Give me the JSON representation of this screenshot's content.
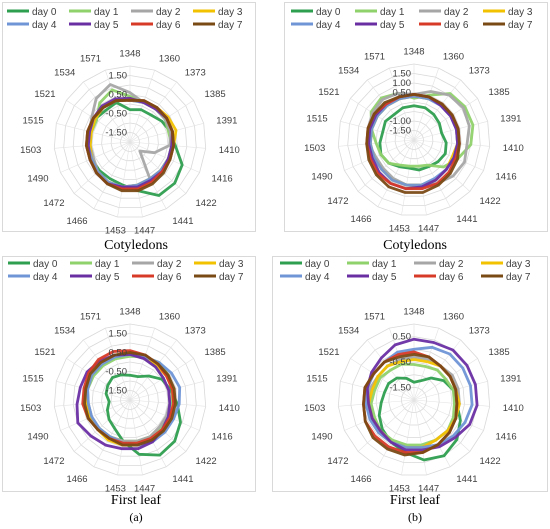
{
  "captions": {
    "top_left": "Cotyledons",
    "top_right": "Cotyledons",
    "bottom_left": "First leaf",
    "bottom_right": "First leaf",
    "sub_left": "(a)",
    "sub_right": "(b)"
  },
  "colors": {
    "day 0": "#2e9e4f",
    "day 1": "#8fd16b",
    "day 2": "#a6a6a6",
    "day 3": "#f2c200",
    "day 4": "#6f95d6",
    "day 5": "#6a2ea3",
    "day 6": "#d73a27",
    "day 7": "#7a4a14"
  },
  "chart_data": [
    {
      "type": "radar",
      "panel": "a-cotyledons",
      "categories": [
        "1348",
        "1360",
        "1373",
        "1385",
        "1391",
        "1410",
        "1416",
        "1422",
        "1441",
        "1447",
        "1453",
        "1466",
        "1472",
        "1490",
        "1503",
        "1515",
        "1521",
        "1534",
        "1571"
      ],
      "rings": [
        "1.50",
        "0.50",
        "-0.50",
        "-1.50"
      ],
      "rlim": [
        -2.0,
        2.0
      ],
      "series": [
        {
          "name": "day 0",
          "values": [
            -0.3,
            -0.2,
            -0.2,
            0,
            0.2,
            0.4,
            1.0,
            1.2,
            1.2,
            0.6,
            0.3,
            0.2,
            0.2,
            0.2,
            0.2,
            0.2,
            0.2,
            0.1,
            0.2
          ]
        },
        {
          "name": "day 1",
          "values": [
            0.4,
            0.2,
            0.2,
            0.2,
            0.1,
            0.2,
            0.2,
            0.2,
            0.3,
            0.4,
            0.5,
            0.5,
            0.4,
            0.2,
            0.1,
            0.1,
            0.1,
            0.6,
            0.9
          ]
        },
        {
          "name": "day 2",
          "values": [
            0.6,
            0.2,
            0.2,
            0.2,
            0.2,
            0.1,
            -0.6,
            -1.3,
            0.2,
            0.3,
            0.4,
            0.4,
            0.3,
            0.1,
            0.1,
            0.2,
            0.4,
            0.9,
            1.2
          ]
        },
        {
          "name": "day 3",
          "values": [
            0.2,
            0.2,
            0.3,
            0.4,
            0.5,
            0.3,
            0.2,
            0.2,
            0.2,
            0.3,
            0.4,
            0.4,
            0.3,
            0.2,
            0.1,
            0.1,
            0.2,
            0.3,
            0.3
          ]
        },
        {
          "name": "day 4",
          "values": [
            0.2,
            0.2,
            0.3,
            0.3,
            0.3,
            0.3,
            0.2,
            0.2,
            0.2,
            0.3,
            0.4,
            0.4,
            0.3,
            0.2,
            0.2,
            0.2,
            0.3,
            0.3,
            0.3
          ]
        },
        {
          "name": "day 5",
          "values": [
            0.3,
            0.2,
            0.2,
            0.3,
            0.3,
            0.2,
            0.2,
            0.3,
            0.3,
            0.4,
            0.4,
            0.5,
            0.4,
            0.3,
            0.2,
            0.2,
            0.3,
            0.4,
            0.4
          ]
        },
        {
          "name": "day 6",
          "values": [
            0.2,
            0.3,
            0.3,
            0.3,
            0.3,
            0.3,
            0.3,
            0.3,
            0.4,
            0.5,
            0.5,
            0.5,
            0.4,
            0.3,
            0.3,
            0.3,
            0.3,
            0.3,
            0.3
          ]
        },
        {
          "name": "day 7",
          "values": [
            0.2,
            0.3,
            0.3,
            0.3,
            0.3,
            0.3,
            0.3,
            0.4,
            0.5,
            0.6,
            0.6,
            0.5,
            0.4,
            0.3,
            0.3,
            0.3,
            0.3,
            0.3,
            0.3
          ]
        }
      ]
    },
    {
      "type": "radar",
      "panel": "b-cotyledons",
      "categories": [
        "1348",
        "1360",
        "1373",
        "1385",
        "1391",
        "1410",
        "1416",
        "1422",
        "1441",
        "1447",
        "1453",
        "1466",
        "1472",
        "1490",
        "1503",
        "1515",
        "1521",
        "1534",
        "1571"
      ],
      "rings": [
        "1.50",
        "1.00",
        "0.50",
        "-1.00",
        "-1.50"
      ],
      "rlim": [
        -2.0,
        2.0
      ],
      "series": [
        {
          "name": "day 0",
          "values": [
            -0.2,
            -0.2,
            -0.3,
            -0.4,
            -0.5,
            -0.3,
            -0.2,
            -0.3,
            -0.4,
            -0.4,
            -0.5,
            -0.4,
            -0.2,
            -0.1,
            -0.2,
            -0.3,
            -0.2,
            -0.3,
            -0.2
          ]
        },
        {
          "name": "day 1",
          "values": [
            0.2,
            0.5,
            1.1,
            1.2,
            1.2,
            1.0,
            0.5,
            0.1,
            -0.5,
            -0.6,
            -0.6,
            -0.5,
            -0.2,
            -0.1,
            0.0,
            0.3,
            0.7,
            0.8,
            0.6
          ]
        },
        {
          "name": "day 2",
          "values": [
            0.4,
            0.7,
            1.0,
            1.1,
            1.0,
            0.8,
            0.9,
            0.8,
            0.6,
            0.5,
            0.4,
            0.3,
            0.2,
            0.2,
            0.4,
            0.5,
            0.6,
            0.7,
            0.6
          ]
        },
        {
          "name": "day 3",
          "values": [
            0.3,
            0.3,
            0.4,
            0.4,
            0.3,
            0.3,
            0.2,
            0.3,
            0.4,
            0.4,
            0.4,
            0.4,
            0.3,
            0.3,
            0.3,
            0.3,
            0.3,
            0.3,
            0.3
          ]
        },
        {
          "name": "day 4",
          "values": [
            0.3,
            0.3,
            0.3,
            0.3,
            0.3,
            0.3,
            0.3,
            0.3,
            0.3,
            0.4,
            0.4,
            0.4,
            0.3,
            0.3,
            0.3,
            0.3,
            0.3,
            0.3,
            0.3
          ]
        },
        {
          "name": "day 5",
          "values": [
            0.4,
            0.4,
            0.3,
            0.3,
            0.3,
            0.3,
            0.3,
            0.3,
            0.4,
            0.5,
            0.6,
            0.6,
            0.5,
            0.4,
            0.4,
            0.4,
            0.4,
            0.4,
            0.4
          ]
        },
        {
          "name": "day 6",
          "values": [
            0.4,
            0.4,
            0.4,
            0.4,
            0.4,
            0.4,
            0.4,
            0.5,
            0.6,
            0.6,
            0.6,
            0.6,
            0.6,
            0.5,
            0.5,
            0.5,
            0.5,
            0.4,
            0.4
          ]
        },
        {
          "name": "day 7",
          "values": [
            0.4,
            0.4,
            0.4,
            0.4,
            0.4,
            0.4,
            0.5,
            0.6,
            0.7,
            0.8,
            0.8,
            0.8,
            0.7,
            0.6,
            0.5,
            0.5,
            0.5,
            0.5,
            0.4
          ]
        }
      ]
    },
    {
      "type": "radar",
      "panel": "a-first-leaf",
      "categories": [
        "1348",
        "1360",
        "1373",
        "1385",
        "1391",
        "1410",
        "1416",
        "1422",
        "1441",
        "1447",
        "1453",
        "1466",
        "1472",
        "1490",
        "1503",
        "1515",
        "1521",
        "1534",
        "1571"
      ],
      "rings": [
        "1.50",
        "0.50",
        "-0.50",
        "-1.50"
      ],
      "rlim": [
        -2.0,
        2.0
      ],
      "series": [
        {
          "name": "day 0",
          "values": [
            -0.7,
            -0.7,
            -0.4,
            0.0,
            0.2,
            0.5,
            0.9,
            1.2,
            1.3,
            0.9,
            0.2,
            -0.3,
            -0.5,
            -0.7,
            -0.9,
            -0.7,
            -0.6,
            -0.5,
            -0.6
          ]
        },
        {
          "name": "day 1",
          "values": [
            0.3,
            0.4,
            0.5,
            0.4,
            0.3,
            0.2,
            0.2,
            0.2,
            0.2,
            0.2,
            0.2,
            0.2,
            0.2,
            0.3,
            0.3,
            0.3,
            0.3,
            0.3,
            0.3
          ]
        },
        {
          "name": "day 2",
          "values": [
            0.4,
            0.3,
            0.2,
            0.1,
            0.1,
            0.1,
            0.1,
            0.1,
            0.2,
            0.2,
            0.2,
            0.2,
            0.2,
            0.2,
            0.2,
            0.3,
            0.4,
            0.5,
            0.5
          ]
        },
        {
          "name": "day 3",
          "values": [
            0.5,
            0.4,
            0.3,
            0.3,
            0.3,
            0.3,
            0.3,
            0.4,
            0.4,
            0.4,
            0.4,
            0.4,
            0.3,
            0.3,
            0.3,
            0.4,
            0.4,
            0.5,
            0.5
          ]
        },
        {
          "name": "day 4",
          "values": [
            0.4,
            0.4,
            0.5,
            0.6,
            0.7,
            0.6,
            0.5,
            0.5,
            0.5,
            0.4,
            0.3,
            0.2,
            0.2,
            0.2,
            0.2,
            0.3,
            0.4,
            0.4,
            0.4
          ]
        },
        {
          "name": "day 5",
          "values": [
            0.4,
            0.3,
            0.2,
            0.1,
            0.1,
            0.1,
            0.2,
            0.3,
            0.5,
            0.6,
            0.6,
            0.7,
            0.8,
            1.0,
            0.8,
            0.7,
            0.7,
            0.6,
            0.5
          ]
        },
        {
          "name": "day 6",
          "values": [
            0.6,
            0.5,
            0.4,
            0.3,
            0.3,
            0.3,
            0.3,
            0.3,
            0.3,
            0.3,
            0.3,
            0.3,
            0.3,
            0.4,
            0.5,
            0.5,
            0.6,
            0.7,
            0.7
          ]
        },
        {
          "name": "day 7",
          "values": [
            0.5,
            0.5,
            0.4,
            0.4,
            0.4,
            0.4,
            0.4,
            0.4,
            0.4,
            0.4,
            0.4,
            0.3,
            0.3,
            0.4,
            0.4,
            0.4,
            0.5,
            0.5,
            0.5
          ]
        }
      ]
    },
    {
      "type": "radar",
      "panel": "b-first-leaf",
      "categories": [
        "1348",
        "1360",
        "1373",
        "1385",
        "1391",
        "1410",
        "1416",
        "1422",
        "1441",
        "1447",
        "1453",
        "1466",
        "1472",
        "1490",
        "1503",
        "1515",
        "1521",
        "1534",
        "1571"
      ],
      "rings": [
        "0.50",
        "-0.50",
        "-1.50"
      ],
      "rlim": [
        -2.0,
        1.0
      ],
      "series": [
        {
          "name": "day 0",
          "values": [
            -1.3,
            -1.2,
            -0.9,
            -0.6,
            -0.4,
            -0.3,
            0.0,
            0.3,
            0.5,
            0.4,
            0.1,
            -0.1,
            -0.3,
            -0.5,
            -0.7,
            -0.8,
            -0.8,
            -0.9,
            -1.1
          ]
        },
        {
          "name": "day 1",
          "values": [
            -0.6,
            -0.6,
            -0.5,
            -0.5,
            -0.4,
            -0.4,
            -0.3,
            -0.2,
            -0.2,
            -0.2,
            -0.2,
            -0.2,
            -0.2,
            -0.3,
            -0.3,
            -0.4,
            -0.4,
            -0.5,
            -0.5
          ]
        },
        {
          "name": "day 2",
          "values": [
            -0.3,
            -0.3,
            -0.3,
            -0.2,
            -0.2,
            -0.2,
            -0.2,
            -0.2,
            -0.2,
            -0.1,
            -0.1,
            -0.1,
            -0.1,
            -0.2,
            -0.2,
            -0.2,
            -0.3,
            -0.3,
            -0.3
          ]
        },
        {
          "name": "day 3",
          "values": [
            -0.4,
            -0.4,
            -0.3,
            -0.3,
            -0.3,
            -0.2,
            -0.2,
            -0.2,
            -0.2,
            -0.1,
            -0.1,
            -0.1,
            -0.2,
            -0.2,
            -0.2,
            -0.3,
            -0.3,
            -0.3,
            -0.4
          ]
        },
        {
          "name": "day 4",
          "values": [
            0.0,
            0.2,
            0.3,
            0.3,
            0.3,
            0.3,
            0.2,
            0.1,
            0.0,
            -0.1,
            -0.1,
            -0.1,
            -0.1,
            -0.1,
            -0.1,
            -0.1,
            -0.1,
            -0.1,
            0.0
          ]
        },
        {
          "name": "day 5",
          "values": [
            0.4,
            0.4,
            0.5,
            0.5,
            0.5,
            0.5,
            0.4,
            0.2,
            0.1,
            0.0,
            0.0,
            -0.1,
            -0.2,
            -0.2,
            -0.2,
            -0.1,
            0.0,
            0.1,
            0.3
          ]
        },
        {
          "name": "day 6",
          "values": [
            -0.1,
            -0.2,
            -0.3,
            -0.3,
            -0.3,
            -0.3,
            -0.2,
            -0.1,
            0.0,
            0.1,
            0.1,
            0.1,
            0.1,
            0.1,
            0.0,
            0.0,
            -0.1,
            -0.1,
            -0.1
          ]
        },
        {
          "name": "day 7",
          "values": [
            -0.2,
            -0.2,
            -0.3,
            -0.3,
            -0.3,
            -0.3,
            -0.2,
            -0.1,
            0.0,
            0.1,
            0.2,
            0.2,
            0.2,
            0.1,
            0.0,
            0.0,
            -0.1,
            -0.1,
            -0.2
          ]
        }
      ]
    }
  ]
}
